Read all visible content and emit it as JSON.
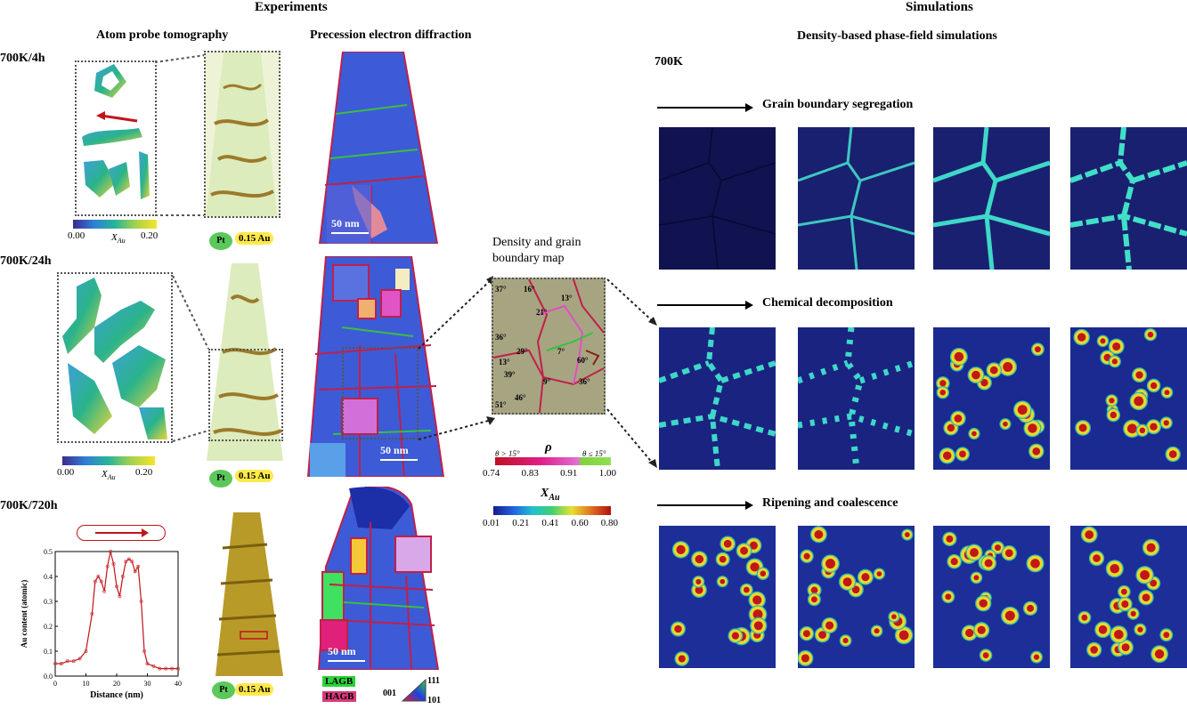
{
  "headers": {
    "experiments": "Experiments",
    "simulations": "Simulations",
    "apt": "Atom probe tomography",
    "ped": "Precession electron diffraction",
    "sim_sub": "Density-based phase-field simulations",
    "sim_temp": "700K"
  },
  "rows": {
    "r1": "700K/4h",
    "r2": "700K/24h",
    "r3": "700K/720h"
  },
  "apt_colorbar": {
    "min1": "0.00",
    "max1": "0.20",
    "label": "X",
    "sub": "Au",
    "min2": "0.00",
    "max2": "0.20"
  },
  "tip_legend": {
    "pt": "Pt",
    "au": "0.15 Au"
  },
  "scalebar": "50 nm",
  "density_map": {
    "title1": "Density and grain",
    "title2": "boundary map",
    "angles": [
      "37°",
      "16°",
      "13°",
      "21°",
      "36°",
      "29°",
      "7°",
      "60°",
      "13°",
      "39°",
      "9°",
      "36°",
      "46°",
      "51°"
    ],
    "legend_high": "θ > 15°",
    "legend_rho": "ρ",
    "legend_low": "θ ≤ 15°",
    "rho_ticks": [
      "0.74",
      "0.83",
      "0.91",
      "1.00"
    ]
  },
  "xau_bar": {
    "label": "X",
    "sub": "Au",
    "ticks": [
      "0.01",
      "0.21",
      "0.41",
      "0.60",
      "0.80"
    ]
  },
  "gb_legend": {
    "lagb": "LAGB",
    "hagb": "HAGB",
    "a": "001",
    "b": "111",
    "c": "101"
  },
  "sim_rows": {
    "s1": "Grain boundary segregation",
    "s2": "Chemical decomposition",
    "s3": "Ripening and coalescence"
  },
  "profile_chart": {
    "chart_data": {
      "type": "line",
      "xlabel": "Distance (nm)",
      "ylabel": "Au content (atomic)",
      "xlim": [
        0,
        40
      ],
      "ylim": [
        0,
        0.5
      ],
      "xticks": [
        "0",
        "10",
        "20",
        "30",
        "40"
      ],
      "yticks": [
        "0.0",
        "0.1",
        "0.2",
        "0.3",
        "0.4",
        "0.5"
      ],
      "x": [
        0,
        2,
        4,
        6,
        8,
        10,
        12,
        13,
        14,
        15,
        16,
        17,
        18,
        19,
        20,
        21,
        22,
        23,
        24,
        25,
        26,
        27,
        28,
        29,
        30,
        32,
        34,
        36,
        38,
        40
      ],
      "y": [
        0.05,
        0.05,
        0.06,
        0.06,
        0.07,
        0.1,
        0.25,
        0.38,
        0.4,
        0.38,
        0.34,
        0.44,
        0.5,
        0.45,
        0.36,
        0.32,
        0.4,
        0.46,
        0.47,
        0.46,
        0.42,
        0.44,
        0.3,
        0.1,
        0.05,
        0.04,
        0.03,
        0.03,
        0.03,
        0.03
      ]
    }
  }
}
